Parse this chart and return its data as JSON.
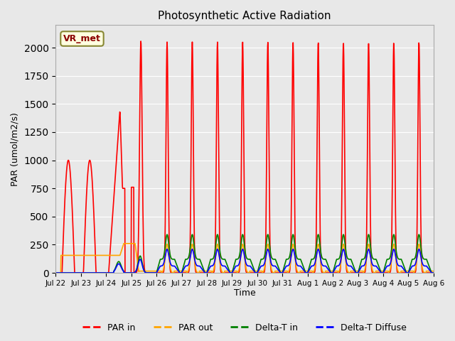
{
  "title": "Photosynthetic Active Radiation",
  "ylabel": "PAR (umol/m2/s)",
  "xlabel": "Time",
  "ylim": [
    0,
    2200
  ],
  "background_color": "#e8e8e8",
  "annotation_label": "VR_met",
  "x_tick_labels": [
    "Jul 22",
    "Jul 23",
    "Jul 24",
    "Jul 25",
    "Jul 26",
    "Jul 27",
    "Jul 28",
    "Jul 29",
    "Jul 30",
    "Jul 31",
    "Aug 1",
    "Aug 2",
    "Aug 3",
    "Aug 4",
    "Aug 5",
    "Aug 6"
  ],
  "legend_entries": [
    "PAR in",
    "PAR out",
    "Delta-T in",
    "Delta-T Diffuse"
  ],
  "line_colors": [
    "red",
    "orange",
    "green",
    "blue"
  ]
}
